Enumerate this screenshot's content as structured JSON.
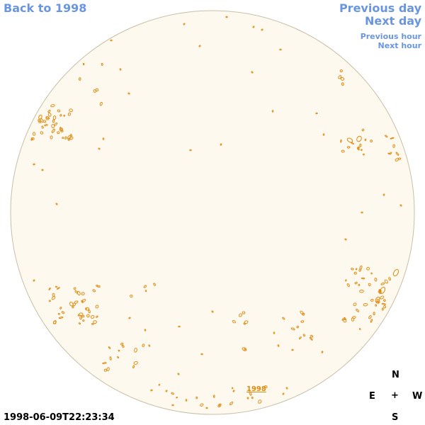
{
  "nav": {
    "back_label": "Back to 1998",
    "previous_day_label": "Previous day",
    "next_day_label": "Next day",
    "previous_hour_label": "Previous hour",
    "next_hour_label": "Next hour"
  },
  "compass": {
    "north": "N",
    "east": "E",
    "center": "+",
    "west": "W",
    "south": "S"
  },
  "timestamp": "1998-06-09T22:23:34",
  "year_label": "1998",
  "colors": {
    "link": "#6a96e0",
    "disk_fill": "#fdf9ee",
    "disk_stroke": "#c9bfa8",
    "contour": "#e08a10"
  }
}
